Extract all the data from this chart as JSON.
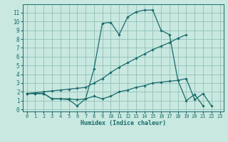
{
  "title": "",
  "xlabel": "Humidex (Indice chaleur)",
  "bg_color": "#c8e8e0",
  "grid_color": "#90c0b8",
  "line_color": "#1a6b6b",
  "xlim": [
    -0.5,
    23.5
  ],
  "ylim": [
    -0.2,
    12
  ],
  "yticks": [
    0,
    1,
    2,
    3,
    4,
    5,
    6,
    7,
    8,
    9,
    10,
    11
  ],
  "xticks": [
    0,
    1,
    2,
    3,
    4,
    5,
    6,
    7,
    8,
    9,
    10,
    11,
    12,
    13,
    14,
    15,
    16,
    17,
    18,
    19,
    20,
    21,
    22,
    23
  ],
  "line1_x": [
    0,
    1,
    2,
    3,
    4,
    5,
    6,
    7,
    8,
    9,
    10,
    11,
    12,
    13,
    14,
    15,
    16,
    17,
    18,
    19,
    20,
    21
  ],
  "line1_y": [
    1.8,
    1.8,
    1.8,
    1.2,
    1.2,
    1.2,
    1.1,
    1.2,
    4.6,
    9.8,
    9.9,
    8.5,
    10.5,
    11.1,
    11.3,
    11.3,
    9.0,
    8.5,
    3.3,
    1.0,
    1.7,
    0.4
  ],
  "line2_x": [
    0,
    1,
    2,
    3,
    4,
    5,
    6,
    7,
    8,
    9,
    10,
    11,
    12,
    13,
    14,
    15,
    16,
    17,
    18,
    19,
    20,
    21,
    22
  ],
  "line2_y": [
    1.8,
    1.8,
    1.8,
    1.2,
    1.2,
    1.1,
    0.4,
    1.2,
    1.5,
    1.2,
    1.5,
    2.0,
    2.2,
    2.5,
    2.7,
    3.0,
    3.1,
    3.2,
    3.3,
    3.5,
    1.1,
    1.8,
    0.4
  ],
  "line3_x": [
    0,
    1,
    2,
    3,
    4,
    5,
    6,
    7,
    8,
    9,
    10,
    11,
    12,
    13,
    14,
    15,
    16,
    17,
    18,
    19
  ],
  "line3_y": [
    1.8,
    1.9,
    2.0,
    2.1,
    2.2,
    2.3,
    2.4,
    2.5,
    3.0,
    3.5,
    4.2,
    4.8,
    5.3,
    5.8,
    6.3,
    6.8,
    7.2,
    7.6,
    8.1,
    8.5
  ]
}
